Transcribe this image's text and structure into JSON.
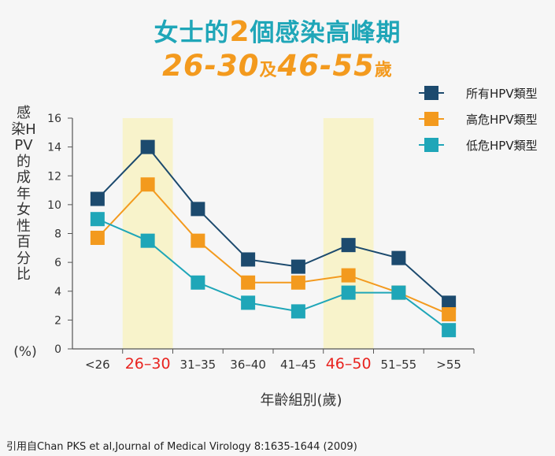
{
  "header": {
    "title_line1_prefix": "女士的",
    "title_line1_number": "2",
    "title_line1_suffix": "個感染高峰期",
    "title_line2_part1": "26-30",
    "title_line2_connector": "及",
    "title_line2_part2": "46-55",
    "title_line2_suffix": "歲"
  },
  "citation": "引用自Chan PKS et al,Journal of Medical Virology 8:1635-1644 (2009)",
  "chart_data": {
    "type": "line",
    "ylabel": "感染HPV的成年女性百分比",
    "ylabel_unit": "(%)",
    "xlabel": "年齡組別(歲)",
    "categories": [
      "<26",
      "26–30",
      "31–35",
      "36–40",
      "41–45",
      "46–50",
      "51–55",
      ">55"
    ],
    "highlighted_categories": [
      "26–30",
      "46–50"
    ],
    "highlight_color": "#f8f3cb",
    "highlight_label_color": "#e8231f",
    "ylim": [
      0,
      16
    ],
    "yticks": [
      0,
      2,
      4,
      6,
      8,
      10,
      12,
      14,
      16
    ],
    "grid": false,
    "legend_position": "top-right",
    "series": [
      {
        "name": "所有HPV類型",
        "color": "#1c4a6e",
        "values": [
          10.4,
          14.0,
          9.7,
          6.2,
          5.7,
          7.2,
          6.3,
          3.2
        ]
      },
      {
        "name": "高危HPV類型",
        "color": "#f39a1e",
        "values": [
          7.7,
          11.4,
          7.5,
          4.6,
          4.6,
          5.1,
          3.9,
          2.4
        ]
      },
      {
        "name": "低危HPV類型",
        "color": "#1fa6b8",
        "values": [
          9.0,
          7.5,
          4.6,
          3.2,
          2.6,
          3.9,
          3.9,
          1.3
        ]
      }
    ]
  }
}
